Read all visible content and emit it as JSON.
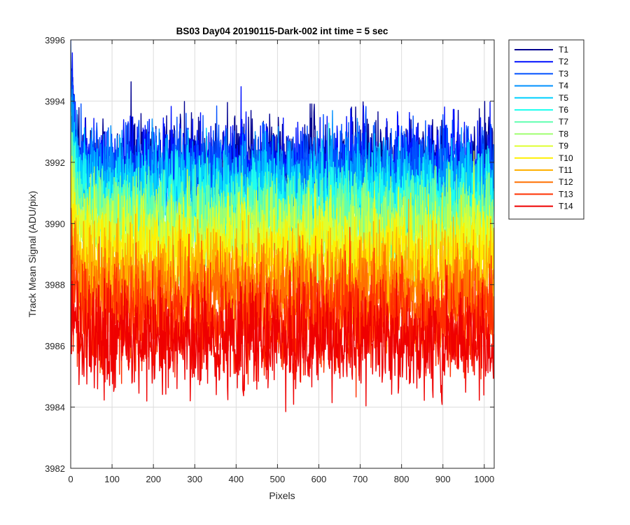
{
  "chart_data": {
    "type": "line",
    "title": "BS03 Day04 20190115-Dark-002 int time = 5 sec",
    "xlabel": "Pixels",
    "ylabel": "Track Mean Signal (ADU/pix)",
    "xlim": [
      0,
      1024
    ],
    "ylim": [
      3982,
      3996
    ],
    "xticks": [
      0,
      100,
      200,
      300,
      400,
      500,
      600,
      700,
      800,
      900,
      1000
    ],
    "yticks": [
      3982,
      3984,
      3986,
      3988,
      3990,
      3992,
      3994,
      3996
    ],
    "grid": true,
    "legend_position": "outside-top-right",
    "points_per_series": 1024,
    "series": [
      {
        "name": "T1",
        "color": "#00008f",
        "mean": 3992.0,
        "noise_amplitude": 0.75,
        "start_value": 3994.6
      },
      {
        "name": "T2",
        "color": "#0010ff",
        "mean": 3991.9,
        "noise_amplitude": 0.75,
        "start_value": 3994.8
      },
      {
        "name": "T3",
        "color": "#0050ff",
        "mean": 3991.7,
        "noise_amplitude": 0.75,
        "start_value": 3995.2
      },
      {
        "name": "T4",
        "color": "#0090ff",
        "mean": 3991.3,
        "noise_amplitude": 0.75,
        "start_value": 3994.6
      },
      {
        "name": "T5",
        "color": "#00d0ff",
        "mean": 3991.0,
        "noise_amplitude": 0.75,
        "start_value": 3994.0
      },
      {
        "name": "T6",
        "color": "#20ffef",
        "mean": 3990.6,
        "noise_amplitude": 0.75,
        "start_value": 3993.0
      },
      {
        "name": "T7",
        "color": "#60ffaf",
        "mean": 3990.2,
        "noise_amplitude": 0.75,
        "start_value": 3992.8
      },
      {
        "name": "T8",
        "color": "#9fff70",
        "mean": 3989.8,
        "noise_amplitude": 0.75,
        "start_value": 3992.2
      },
      {
        "name": "T9",
        "color": "#dfff30",
        "mean": 3989.4,
        "noise_amplitude": 0.75,
        "start_value": 3991.6
      },
      {
        "name": "T10",
        "color": "#ffef00",
        "mean": 3988.9,
        "noise_amplitude": 0.75,
        "start_value": 3991.0
      },
      {
        "name": "T11",
        "color": "#ffb000",
        "mean": 3988.3,
        "noise_amplitude": 0.8,
        "start_value": 3990.2
      },
      {
        "name": "T12",
        "color": "#ff7000",
        "mean": 3987.6,
        "noise_amplitude": 0.8,
        "start_value": 3989.6
      },
      {
        "name": "T13",
        "color": "#ff3000",
        "mean": 3986.8,
        "noise_amplitude": 0.85,
        "start_value": 3988.8
      },
      {
        "name": "T14",
        "color": "#ef0000",
        "mean": 3986.2,
        "noise_amplitude": 0.85,
        "start_value": 3988.0
      }
    ]
  }
}
